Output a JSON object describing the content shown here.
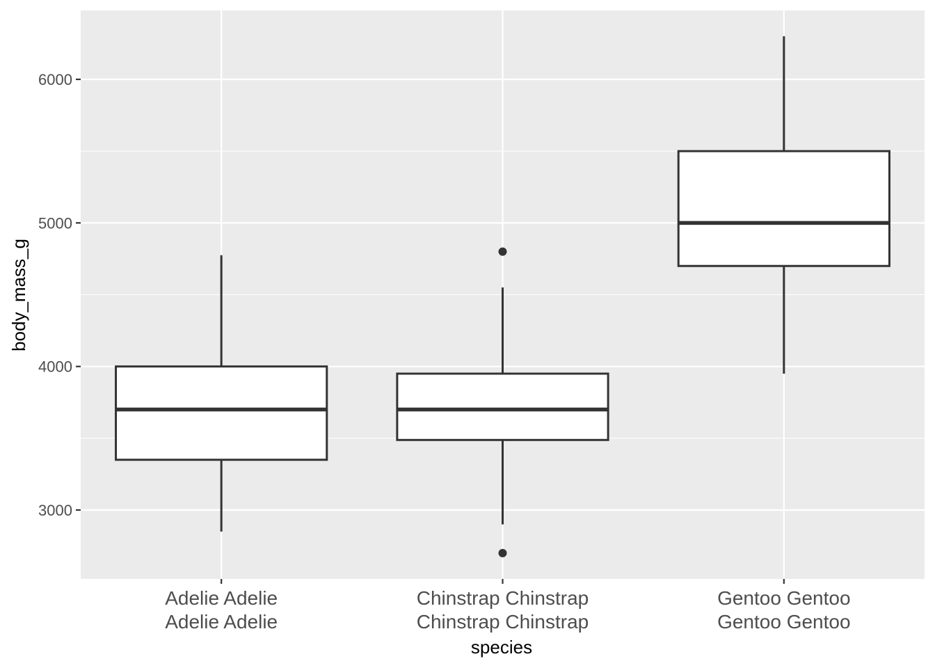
{
  "chart_data": {
    "type": "boxplot",
    "title": "",
    "xlabel": "species",
    "ylabel": "body_mass_g",
    "categories": [
      [
        "Adelie Adelie",
        "Adelie Adelie"
      ],
      [
        "Chinstrap Chinstrap",
        "Chinstrap Chinstrap"
      ],
      [
        "Gentoo Gentoo",
        "Gentoo Gentoo"
      ]
    ],
    "boxes": [
      {
        "q1": 3350,
        "median": 3700,
        "q3": 4000,
        "whisker_low": 2850,
        "whisker_high": 4775,
        "outliers": []
      },
      {
        "q1": 3488,
        "median": 3700,
        "q3": 3950,
        "whisker_low": 2900,
        "whisker_high": 4550,
        "outliers": [
          4800,
          2700
        ]
      },
      {
        "q1": 4700,
        "median": 5000,
        "q3": 5500,
        "whisker_low": 3950,
        "whisker_high": 6300,
        "outliers": []
      }
    ],
    "ylim": [
      2520,
      6480
    ],
    "yticks": [
      3000,
      4000,
      5000,
      6000
    ],
    "grid": true,
    "colors": {
      "panel": "#ebebeb",
      "grid": "#ffffff",
      "box_fill": "#ffffff",
      "box_stroke": "#333333",
      "tick_text": "#4d4d4d",
      "title_text": "#000000"
    }
  }
}
